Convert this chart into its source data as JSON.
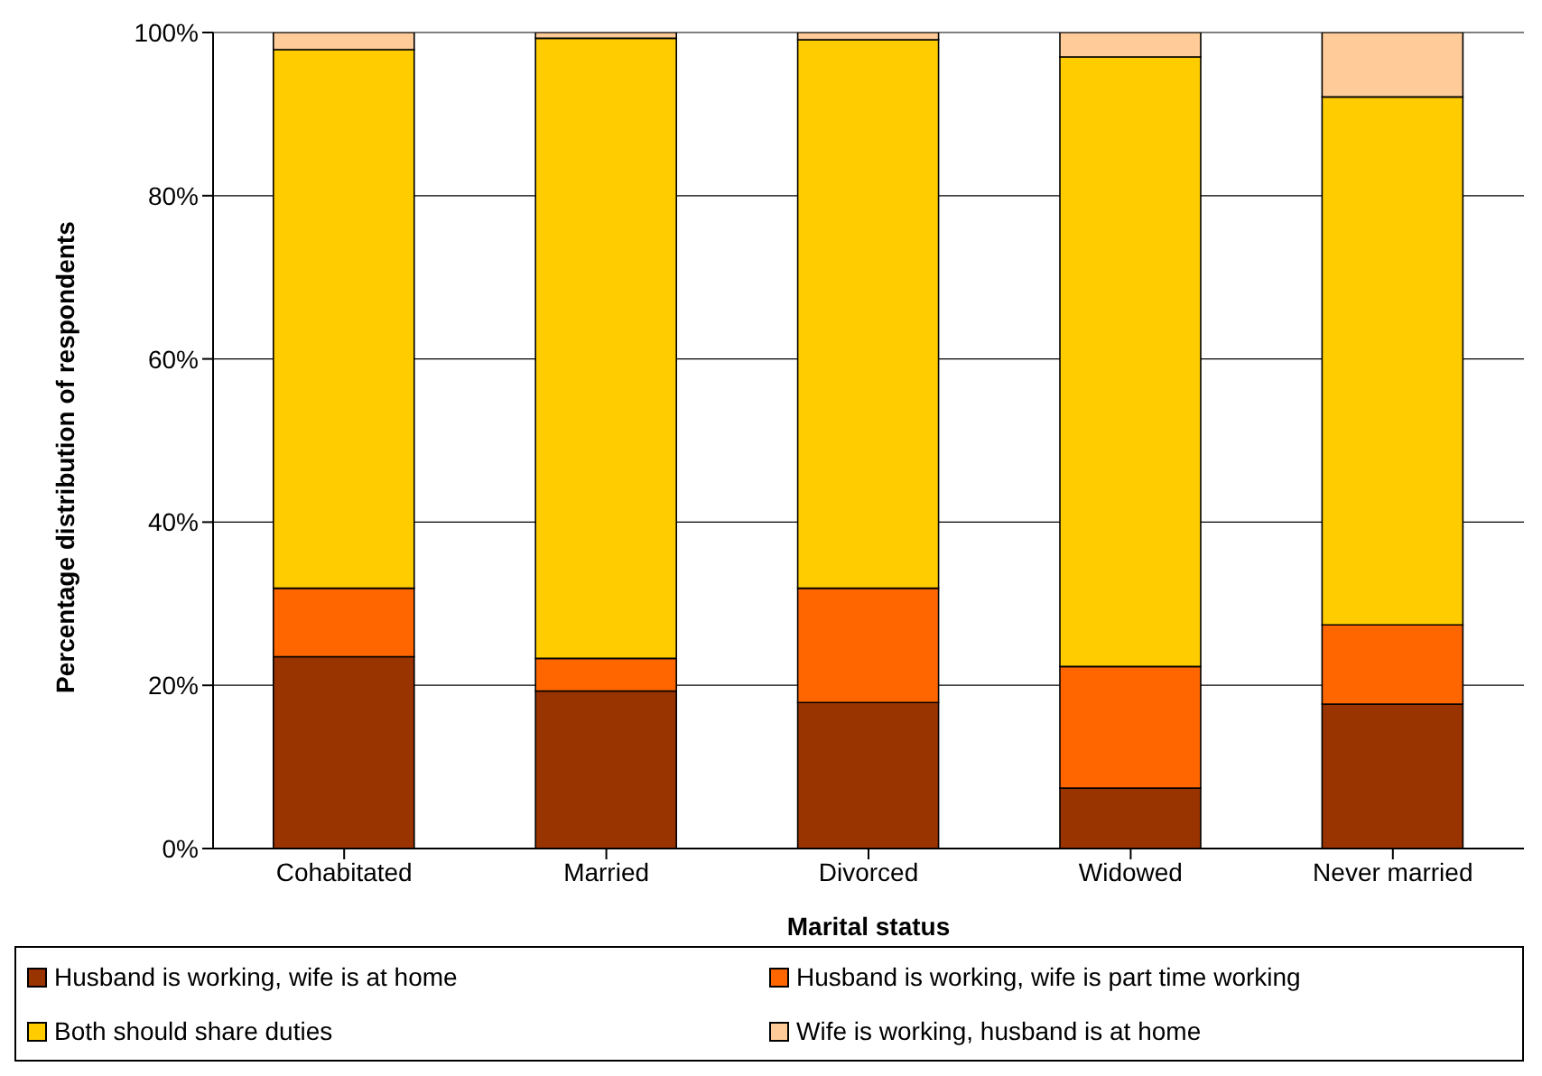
{
  "chart_data": {
    "type": "bar",
    "stacked": true,
    "xlabel": "Marital status",
    "ylabel": "Percentage distribution of respondents",
    "categories": [
      "Cohabitated",
      "Married",
      "Divorced",
      "Widowed",
      "Never married"
    ],
    "series": [
      {
        "name": "Husband is working, wife is at home",
        "color": "#993300",
        "values": [
          23.5,
          19.3,
          17.9,
          7.4,
          17.7
        ]
      },
      {
        "name": "Husband is working, wife is part time working",
        "color": "#ff6600",
        "values": [
          8.4,
          4,
          14,
          14.9,
          9.7
        ]
      },
      {
        "name": "Both should share duties",
        "color": "#ffcc00",
        "values": [
          66,
          76,
          67.2,
          74.7,
          64.7
        ]
      },
      {
        "name": "Wife is working, husband is at home",
        "color": "#ffcc99",
        "values": [
          2.1,
          0.7,
          0.9,
          3,
          7.9
        ]
      }
    ],
    "ylim": [
      0,
      100
    ],
    "yticks": [
      {
        "value": 0,
        "label": "0%"
      },
      {
        "value": 20,
        "label": "20%"
      },
      {
        "value": 40,
        "label": "40%"
      },
      {
        "value": 60,
        "label": "60%"
      },
      {
        "value": 80,
        "label": "80%"
      },
      {
        "value": 100,
        "label": "100%"
      }
    ],
    "grid": "y",
    "legend": "bottom"
  }
}
